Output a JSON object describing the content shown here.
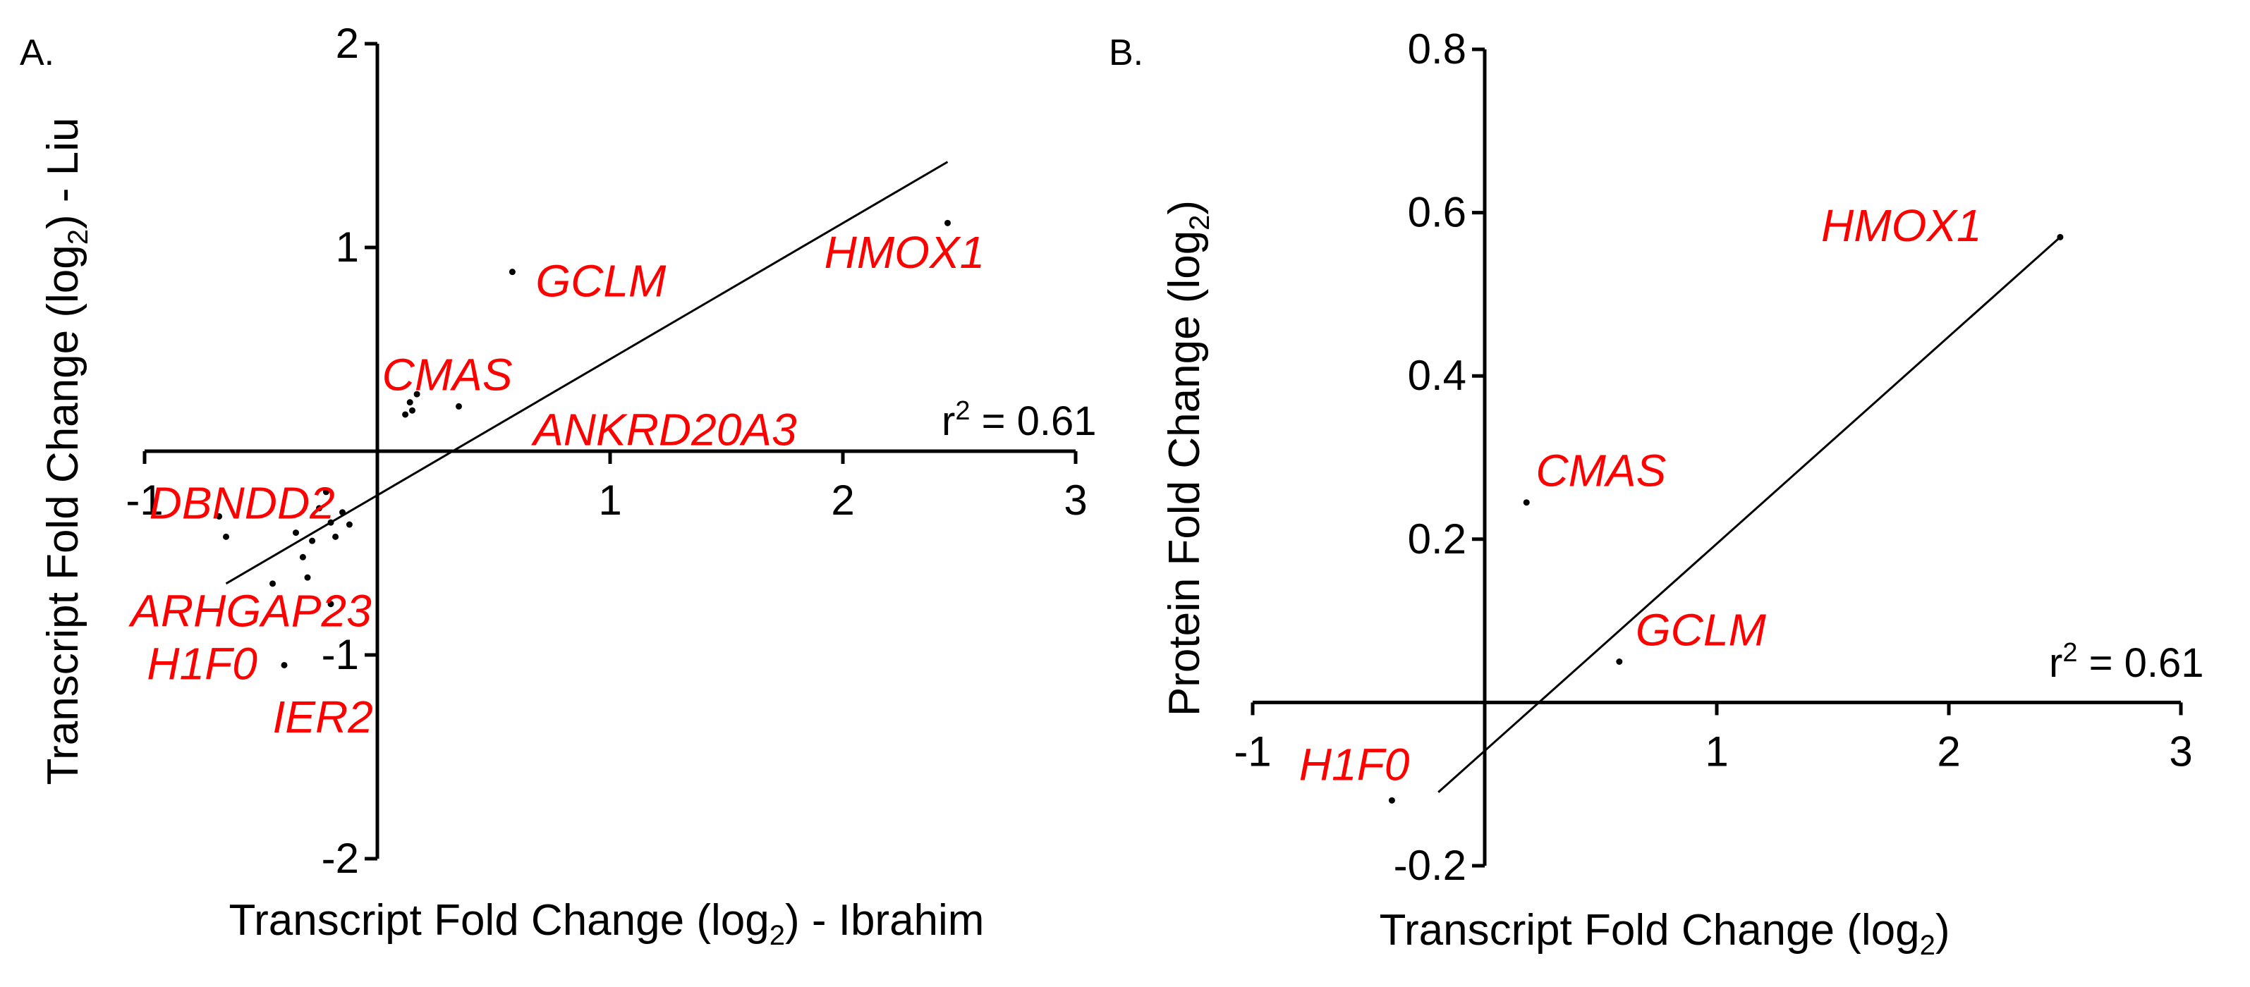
{
  "chart_data": [
    {
      "type": "scatter",
      "panel_label": "A.",
      "xlabel": {
        "main": "Transcript Fold Change (log",
        "sub": "2",
        "tail": ") - Ibrahim"
      },
      "ylabel": {
        "main": "Transcript Fold Change (log",
        "sub": "2",
        "tail": ") - Liu"
      },
      "xlim": [
        -1,
        3
      ],
      "ylim": [
        -2,
        2
      ],
      "xticks": [
        "-1",
        "1",
        "2",
        "3"
      ],
      "yticks": [
        "2",
        "1",
        "-1",
        "-2"
      ],
      "r2_label": {
        "prefix": "r",
        "sup": "2",
        "suffix": " = 0.61"
      },
      "fit_line": [
        [
          -0.65,
          -0.65
        ],
        [
          2.45,
          1.42
        ]
      ],
      "points": [
        {
          "x": 2.45,
          "y": 1.12
        },
        {
          "x": 0.58,
          "y": 0.88
        },
        {
          "x": 0.35,
          "y": 0.22
        },
        {
          "x": 0.12,
          "y": 0.18
        },
        {
          "x": 0.14,
          "y": 0.24
        },
        {
          "x": 0.17,
          "y": 0.28
        },
        {
          "x": 0.15,
          "y": 0.2
        },
        {
          "x": -0.68,
          "y": -0.32
        },
        {
          "x": -0.65,
          "y": -0.42
        },
        {
          "x": -0.22,
          "y": -0.2
        },
        {
          "x": -0.25,
          "y": -0.28
        },
        {
          "x": -0.2,
          "y": -0.35
        },
        {
          "x": -0.18,
          "y": -0.42
        },
        {
          "x": -0.15,
          "y": -0.3
        },
        {
          "x": -0.12,
          "y": -0.36
        },
        {
          "x": -0.28,
          "y": -0.44
        },
        {
          "x": -0.35,
          "y": -0.4
        },
        {
          "x": -0.32,
          "y": -0.52
        },
        {
          "x": -0.3,
          "y": -0.62
        },
        {
          "x": -0.2,
          "y": -0.75
        },
        {
          "x": -0.4,
          "y": -1.05
        },
        {
          "x": -0.45,
          "y": -0.65
        }
      ],
      "gene_labels": [
        {
          "text": "HMOX1",
          "x": 1.92,
          "y": 0.9
        },
        {
          "text": "GCLM",
          "x": 0.68,
          "y": 0.76
        },
        {
          "text": "CMAS",
          "x": 0.02,
          "y": 0.3
        },
        {
          "text": "ANKRD20A3",
          "x": 0.67,
          "y": 0.03
        },
        {
          "text": "DBNDD2",
          "x": -0.98,
          "y": -0.33
        },
        {
          "text": "ARHGAP23",
          "x": -1.06,
          "y": -0.86
        },
        {
          "text": "H1F0",
          "x": -0.99,
          "y": -1.12
        },
        {
          "text": "IER2",
          "x": -0.45,
          "y": -1.38
        }
      ]
    },
    {
      "type": "scatter",
      "panel_label": "B.",
      "xlabel": {
        "main": "Transcript Fold Change (log",
        "sub": "2",
        "tail": ")"
      },
      "ylabel": {
        "main": "Protein Fold Change (log",
        "sub": "2",
        "tail": ")"
      },
      "xlim": [
        -1,
        3
      ],
      "ylim": [
        -0.2,
        0.8
      ],
      "xticks": [
        "-1",
        "1",
        "2",
        "3"
      ],
      "yticks": [
        "0.8",
        "0.6",
        "0.4",
        "0.2",
        "-0.2"
      ],
      "r2_label": {
        "prefix": "r",
        "sup": "2",
        "suffix": " = 0.61"
      },
      "fit_line": [
        [
          -0.2,
          -0.11
        ],
        [
          2.48,
          0.57
        ]
      ],
      "points": [
        {
          "x": 2.48,
          "y": 0.57
        },
        {
          "x": 0.18,
          "y": 0.245
        },
        {
          "x": 0.58,
          "y": 0.05
        },
        {
          "x": -0.4,
          "y": -0.12
        }
      ],
      "gene_labels": [
        {
          "text": "HMOX1",
          "x": 1.45,
          "y": 0.565
        },
        {
          "text": "CMAS",
          "x": 0.22,
          "y": 0.265
        },
        {
          "text": "GCLM",
          "x": 0.65,
          "y": 0.07
        },
        {
          "text": "H1F0",
          "x": -0.8,
          "y": -0.095
        }
      ]
    }
  ]
}
